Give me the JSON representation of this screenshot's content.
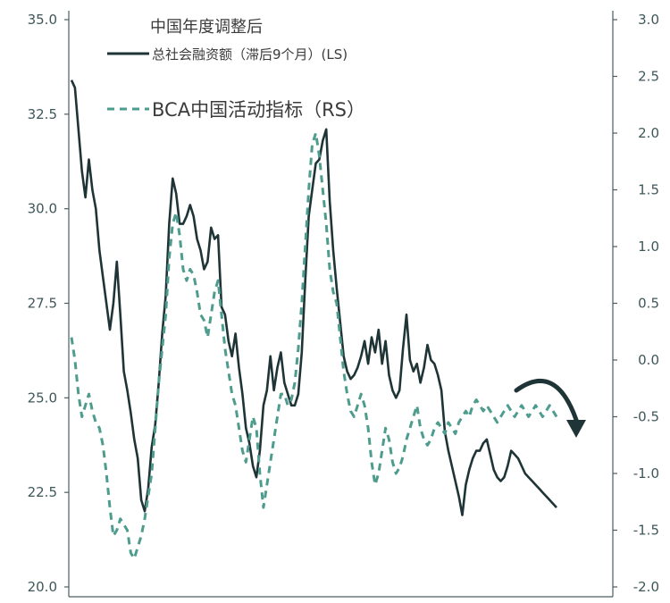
{
  "chart_data": {
    "type": "line",
    "title": "中国年度调整后",
    "left_axis": {
      "ylim": [
        20.0,
        35.0
      ],
      "ticks": [
        "35.0",
        "32.5",
        "30.0",
        "27.5",
        "25.0",
        "22.5",
        "20.0"
      ]
    },
    "right_axis": {
      "ylim": [
        -2.0,
        3.0
      ],
      "ticks": [
        "3.0",
        "2.5",
        "2.0",
        "1.5",
        "1.0",
        "0.5",
        "0.0",
        "-0.5",
        "-1.0",
        "-1.5",
        "-2.0"
      ]
    },
    "grid": false,
    "legend_position": "top-left",
    "x": [
      0,
      1,
      2,
      3,
      4,
      5,
      6,
      7,
      8,
      9,
      10,
      11,
      12,
      13,
      14,
      15,
      16,
      17,
      18,
      19,
      20,
      21,
      22,
      23,
      24,
      25,
      26,
      27,
      28,
      29,
      30,
      31,
      32,
      33,
      34,
      35,
      36,
      37,
      38,
      39,
      40,
      41,
      42,
      43,
      44,
      45,
      46,
      47,
      48,
      49,
      50,
      51,
      52,
      53,
      54,
      55,
      56,
      57,
      58,
      59,
      60,
      61,
      62,
      63,
      64,
      65,
      66,
      67,
      68,
      69,
      70,
      71,
      72,
      73,
      74,
      75,
      76,
      77,
      78,
      79,
      80,
      81,
      82,
      83,
      84,
      85,
      86,
      87,
      88,
      89,
      90,
      91,
      92,
      93,
      94,
      95,
      96,
      97,
      98,
      99,
      100,
      101,
      102,
      103,
      104,
      105,
      106,
      107,
      108,
      109,
      110,
      111,
      112,
      113,
      114,
      115,
      116,
      117,
      118,
      119,
      120,
      121,
      122,
      123,
      124,
      125,
      126,
      127,
      128,
      129,
      130,
      131,
      132,
      133,
      134,
      135,
      136,
      137,
      138,
      139
    ],
    "series": [
      {
        "name": "总社会融资额（滞后9个月）(LS)",
        "axis": "left",
        "style": "solid",
        "color": "#1f3436",
        "values": [
          33.4,
          33.2,
          32.1,
          31.0,
          30.3,
          31.3,
          30.5,
          30.0,
          28.9,
          28.2,
          27.5,
          26.8,
          27.5,
          28.6,
          27.2,
          25.7,
          25.2,
          24.6,
          23.9,
          23.4,
          22.3,
          22.0,
          22.6,
          23.7,
          24.3,
          25.4,
          26.7,
          27.7,
          29.6,
          30.8,
          30.4,
          29.6,
          29.6,
          29.8,
          30.1,
          29.8,
          29.2,
          28.9,
          28.4,
          28.6,
          29.5,
          29.2,
          29.3,
          27.4,
          27.2,
          26.5,
          26.1,
          26.7,
          25.8,
          25.1,
          24.2,
          23.8,
          23.2,
          22.9,
          23.6,
          24.8,
          25.2,
          26.1,
          25.2,
          25.8,
          26.2,
          25.4,
          25.1,
          24.8,
          24.8,
          25.1,
          26.2,
          28.1,
          29.8,
          30.5,
          31.2,
          31.3,
          31.8,
          32.1,
          30.2,
          28.9,
          27.9,
          27.0,
          26.1,
          25.7,
          25.5,
          25.6,
          25.8,
          26.1,
          26.5,
          25.9,
          26.6,
          26.2,
          26.8,
          25.9,
          26.5,
          25.6,
          25.2,
          25.0,
          25.2,
          26.3,
          27.2,
          26.0,
          25.7,
          25.9,
          25.4,
          25.8,
          26.4,
          26.0,
          25.9,
          25.6,
          25.2,
          24.1,
          23.6,
          23.2,
          22.8,
          22.4,
          21.9,
          22.7,
          23.1,
          23.4,
          23.6,
          23.6,
          23.8,
          23.9,
          23.5,
          23.1,
          22.9,
          22.8,
          22.9,
          23.2,
          23.6,
          23.5,
          23.4,
          23.2,
          23.0,
          22.9,
          22.8,
          22.7,
          22.6,
          22.5,
          22.4,
          22.3,
          22.2,
          22.1
        ]
      },
      {
        "name": "BCA中国活动指标（RS）",
        "axis": "right",
        "style": "dashed",
        "color": "#4e9c8d",
        "values": [
          0.2,
          0.0,
          -0.3,
          -0.5,
          -0.4,
          -0.3,
          -0.45,
          -0.55,
          -0.6,
          -0.75,
          -1.0,
          -1.3,
          -1.55,
          -1.5,
          -1.4,
          -1.45,
          -1.5,
          -1.7,
          -1.75,
          -1.65,
          -1.55,
          -1.4,
          -1.2,
          -1.0,
          -0.6,
          -0.2,
          0.1,
          0.4,
          0.9,
          1.2,
          1.3,
          1.1,
          0.8,
          0.7,
          0.8,
          0.75,
          0.6,
          0.4,
          0.35,
          0.2,
          0.4,
          0.6,
          0.7,
          0.4,
          0.1,
          -0.1,
          -0.3,
          -0.4,
          -0.6,
          -0.8,
          -0.9,
          -0.7,
          -0.5,
          -0.6,
          -1.0,
          -1.3,
          -1.1,
          -0.9,
          -0.7,
          -0.5,
          -0.3,
          -0.3,
          -0.4,
          -0.35,
          -0.2,
          0.1,
          0.5,
          1.0,
          1.5,
          1.9,
          2.0,
          1.8,
          1.5,
          1.2,
          0.8,
          0.6,
          0.5,
          0.2,
          -0.1,
          -0.3,
          -0.45,
          -0.5,
          -0.4,
          -0.3,
          -0.4,
          -0.6,
          -0.9,
          -1.1,
          -1.0,
          -0.8,
          -0.6,
          -0.7,
          -0.9,
          -1.0,
          -0.95,
          -0.85,
          -0.7,
          -0.6,
          -0.5,
          -0.4,
          -0.6,
          -0.7,
          -0.75,
          -0.7,
          -0.6,
          -0.55,
          -0.6,
          -0.65,
          -0.55,
          -0.6,
          -0.65,
          -0.55,
          -0.5,
          -0.45,
          -0.5,
          -0.4,
          -0.35,
          -0.4,
          -0.45,
          -0.4,
          -0.45,
          -0.5,
          -0.55,
          -0.5,
          -0.45,
          -0.4,
          -0.45,
          -0.5,
          -0.45,
          -0.4,
          -0.45,
          -0.5,
          -0.45,
          -0.4,
          -0.45,
          -0.5,
          -0.45,
          -0.4,
          -0.45,
          -0.5
        ]
      }
    ],
    "annotation": {
      "type": "curved-arrow",
      "direction": "down-right",
      "color": "#1f3436"
    }
  },
  "legend": {
    "title": "中国年度调整后",
    "item_solid": "总社会融资额（滞后9个月）(LS)",
    "item_dashed": "BCA中国活动指标（RS）"
  }
}
